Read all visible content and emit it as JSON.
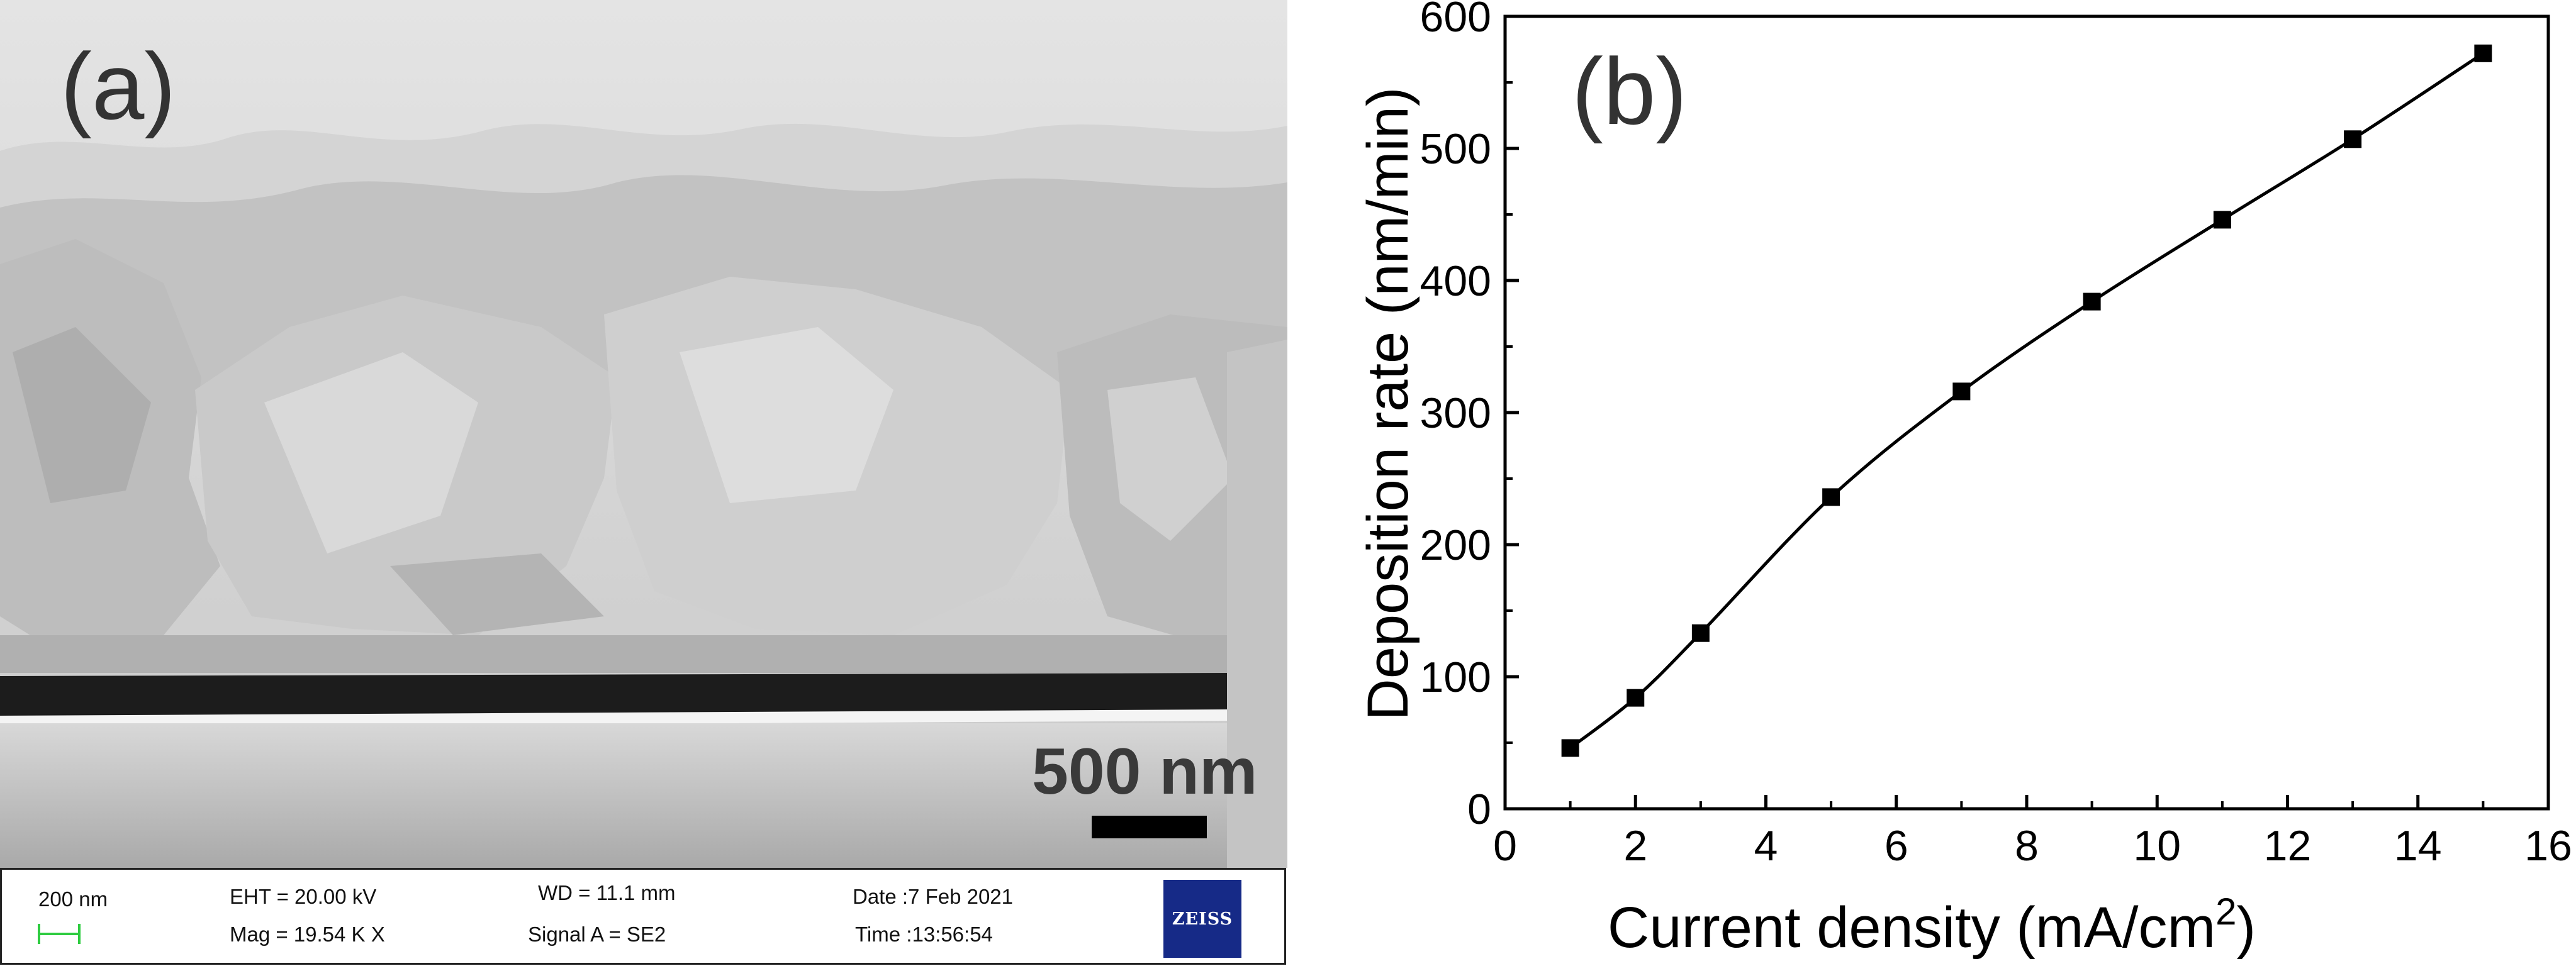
{
  "panel_a": {
    "label": "(a)",
    "scale_bar_label": "500 nm",
    "info_bar": {
      "scale_value": "200 nm",
      "eht": "EHT = 20.00 kV",
      "mag": "Mag =  19.54 K X",
      "wd": "WD = 11.1 mm",
      "signal": "Signal A = SE2",
      "date": "Date :7 Feb 2021",
      "time": "Time :13:56:54",
      "logo_text": "ZEISS"
    },
    "image_icon": "sem-micrograph",
    "colors": {
      "logo_bg": "#162a87",
      "scale_icon": "#2ecc40"
    }
  },
  "panel_b": {
    "label": "(b)"
  },
  "chart_data": {
    "type": "line",
    "xlabel": "Current density (mA/cm",
    "xlabel_superscript": "2",
    "xlabel_suffix": ")",
    "ylabel": "Deposition rate (nm/min)",
    "xlim": [
      0,
      16
    ],
    "ylim": [
      0,
      600
    ],
    "xticks": [
      "0",
      "2",
      "4",
      "6",
      "8",
      "10",
      "12",
      "14",
      "16"
    ],
    "yticks": [
      "0",
      "100",
      "200",
      "300",
      "400",
      "500",
      "600"
    ],
    "marker": "square",
    "grid": false,
    "series": [
      {
        "x": [
          1,
          2,
          3,
          5,
          7,
          9,
          11,
          13,
          15
        ],
        "y": [
          46,
          84,
          133,
          236,
          316,
          384,
          446,
          507,
          572
        ]
      }
    ],
    "colors": {
      "line": "#000000",
      "marker": "#000000"
    }
  }
}
